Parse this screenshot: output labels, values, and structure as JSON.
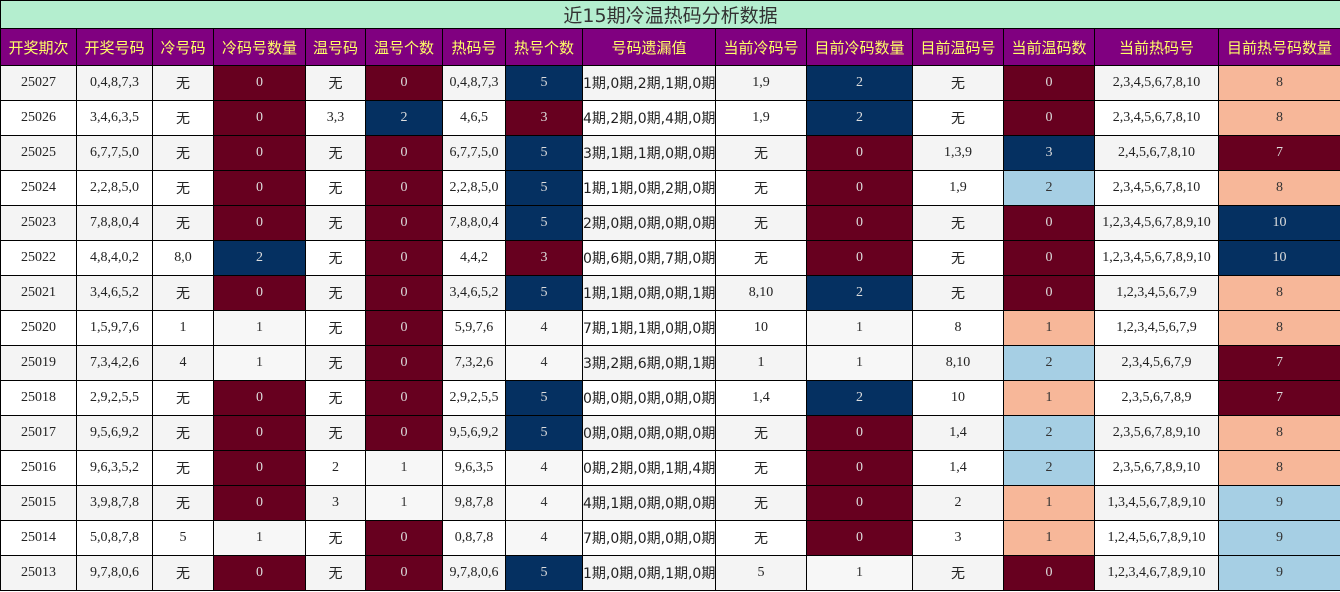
{
  "title": "近15期冷温热码分析数据",
  "headers": [
    "开奖期次",
    "开奖号码",
    "冷号码",
    "冷码号数量",
    "温号码",
    "温号个数",
    "热码号",
    "热号个数",
    "号码遗漏值",
    "当前冷码号",
    "目前冷码数量",
    "目前温码号",
    "当前温码数",
    "当前热码号",
    "目前热号码数量"
  ],
  "colors": {
    "M": "#67001f",
    "N": "#053061",
    "P": "#f7b799",
    "L": "#a6cfe4",
    "W": "#f7f7f7",
    "title_bg": "#b4eecf",
    "header_bg": "#800080",
    "header_text": "#ffff66"
  },
  "rows": [
    [
      "25027",
      "0,4,8,7,3",
      "无",
      "0",
      "无",
      "0",
      "0,4,8,7,3",
      "5",
      "1期,0期,2期,1期,0期",
      "1,9",
      "2",
      "无",
      "0",
      "2,3,4,5,6,7,8,10",
      "8"
    ],
    [
      "25026",
      "3,4,6,3,5",
      "无",
      "0",
      "3,3",
      "2",
      "4,6,5",
      "3",
      "4期,2期,0期,4期,0期",
      "1,9",
      "2",
      "无",
      "0",
      "2,3,4,5,6,7,8,10",
      "8"
    ],
    [
      "25025",
      "6,7,7,5,0",
      "无",
      "0",
      "无",
      "0",
      "6,7,7,5,0",
      "5",
      "3期,1期,1期,0期,0期",
      "无",
      "0",
      "1,3,9",
      "3",
      "2,4,5,6,7,8,10",
      "7"
    ],
    [
      "25024",
      "2,2,8,5,0",
      "无",
      "0",
      "无",
      "0",
      "2,2,8,5,0",
      "5",
      "1期,1期,0期,2期,0期",
      "无",
      "0",
      "1,9",
      "2",
      "2,3,4,5,6,7,8,10",
      "8"
    ],
    [
      "25023",
      "7,8,8,0,4",
      "无",
      "0",
      "无",
      "0",
      "7,8,8,0,4",
      "5",
      "2期,0期,0期,0期,0期",
      "无",
      "0",
      "无",
      "0",
      "1,2,3,4,5,6,7,8,9,10",
      "10"
    ],
    [
      "25022",
      "4,8,4,0,2",
      "8,0",
      "2",
      "无",
      "0",
      "4,4,2",
      "3",
      "0期,6期,0期,7期,0期",
      "无",
      "0",
      "无",
      "0",
      "1,2,3,4,5,6,7,8,9,10",
      "10"
    ],
    [
      "25021",
      "3,4,6,5,2",
      "无",
      "0",
      "无",
      "0",
      "3,4,6,5,2",
      "5",
      "1期,1期,0期,0期,1期",
      "8,10",
      "2",
      "无",
      "0",
      "1,2,3,4,5,6,7,9",
      "8"
    ],
    [
      "25020",
      "1,5,9,7,6",
      "1",
      "1",
      "无",
      "0",
      "5,9,7,6",
      "4",
      "7期,1期,1期,0期,0期",
      "10",
      "1",
      "8",
      "1",
      "1,2,3,4,5,6,7,9",
      "8"
    ],
    [
      "25019",
      "7,3,4,2,6",
      "4",
      "1",
      "无",
      "0",
      "7,3,2,6",
      "4",
      "3期,2期,6期,0期,1期",
      "1",
      "1",
      "8,10",
      "2",
      "2,3,4,5,6,7,9",
      "7"
    ],
    [
      "25018",
      "2,9,2,5,5",
      "无",
      "0",
      "无",
      "0",
      "2,9,2,5,5",
      "5",
      "0期,0期,0期,0期,0期",
      "1,4",
      "2",
      "10",
      "1",
      "2,3,5,6,7,8,9",
      "7"
    ],
    [
      "25017",
      "9,5,6,9,2",
      "无",
      "0",
      "无",
      "0",
      "9,5,6,9,2",
      "5",
      "0期,0期,0期,0期,0期",
      "无",
      "0",
      "1,4",
      "2",
      "2,3,5,6,7,8,9,10",
      "8"
    ],
    [
      "25016",
      "9,6,3,5,2",
      "无",
      "0",
      "2",
      "1",
      "9,6,3,5",
      "4",
      "0期,2期,0期,1期,4期",
      "无",
      "0",
      "1,4",
      "2",
      "2,3,5,6,7,8,9,10",
      "8"
    ],
    [
      "25015",
      "3,9,8,7,8",
      "无",
      "0",
      "3",
      "1",
      "9,8,7,8",
      "4",
      "4期,1期,0期,0期,0期",
      "无",
      "0",
      "2",
      "1",
      "1,3,4,5,6,7,8,9,10",
      "9"
    ],
    [
      "25014",
      "5,0,8,7,8",
      "5",
      "1",
      "无",
      "0",
      "0,8,7,8",
      "4",
      "7期,0期,0期,0期,0期",
      "无",
      "0",
      "3",
      "1",
      "1,2,4,5,6,7,8,9,10",
      "9"
    ],
    [
      "25013",
      "9,7,8,0,6",
      "无",
      "0",
      "无",
      "0",
      "9,7,8,0,6",
      "5",
      "1期,0期,0期,1期,0期",
      "5",
      "1",
      "无",
      "0",
      "1,2,3,4,6,7,8,9,10",
      "9"
    ]
  ],
  "cell_colors": [
    [
      "M",
      "M",
      "N",
      "N",
      "M",
      "P"
    ],
    [
      "M",
      "N",
      "M",
      "N",
      "M",
      "P"
    ],
    [
      "M",
      "M",
      "N",
      "M",
      "N",
      "M"
    ],
    [
      "M",
      "M",
      "N",
      "M",
      "L",
      "P"
    ],
    [
      "M",
      "M",
      "N",
      "M",
      "M",
      "N"
    ],
    [
      "N",
      "M",
      "M",
      "M",
      "M",
      "N"
    ],
    [
      "M",
      "M",
      "N",
      "N",
      "M",
      "P"
    ],
    [
      "W",
      "M",
      "W",
      "W",
      "P",
      "P"
    ],
    [
      "W",
      "M",
      "W",
      "W",
      "L",
      "M"
    ],
    [
      "M",
      "M",
      "N",
      "N",
      "P",
      "M"
    ],
    [
      "M",
      "M",
      "N",
      "M",
      "L",
      "P"
    ],
    [
      "M",
      "W",
      "W",
      "M",
      "L",
      "P"
    ],
    [
      "M",
      "W",
      "W",
      "M",
      "P",
      "L"
    ],
    [
      "W",
      "M",
      "W",
      "M",
      "P",
      "L"
    ],
    [
      "M",
      "M",
      "N",
      "W",
      "M",
      "L"
    ]
  ]
}
